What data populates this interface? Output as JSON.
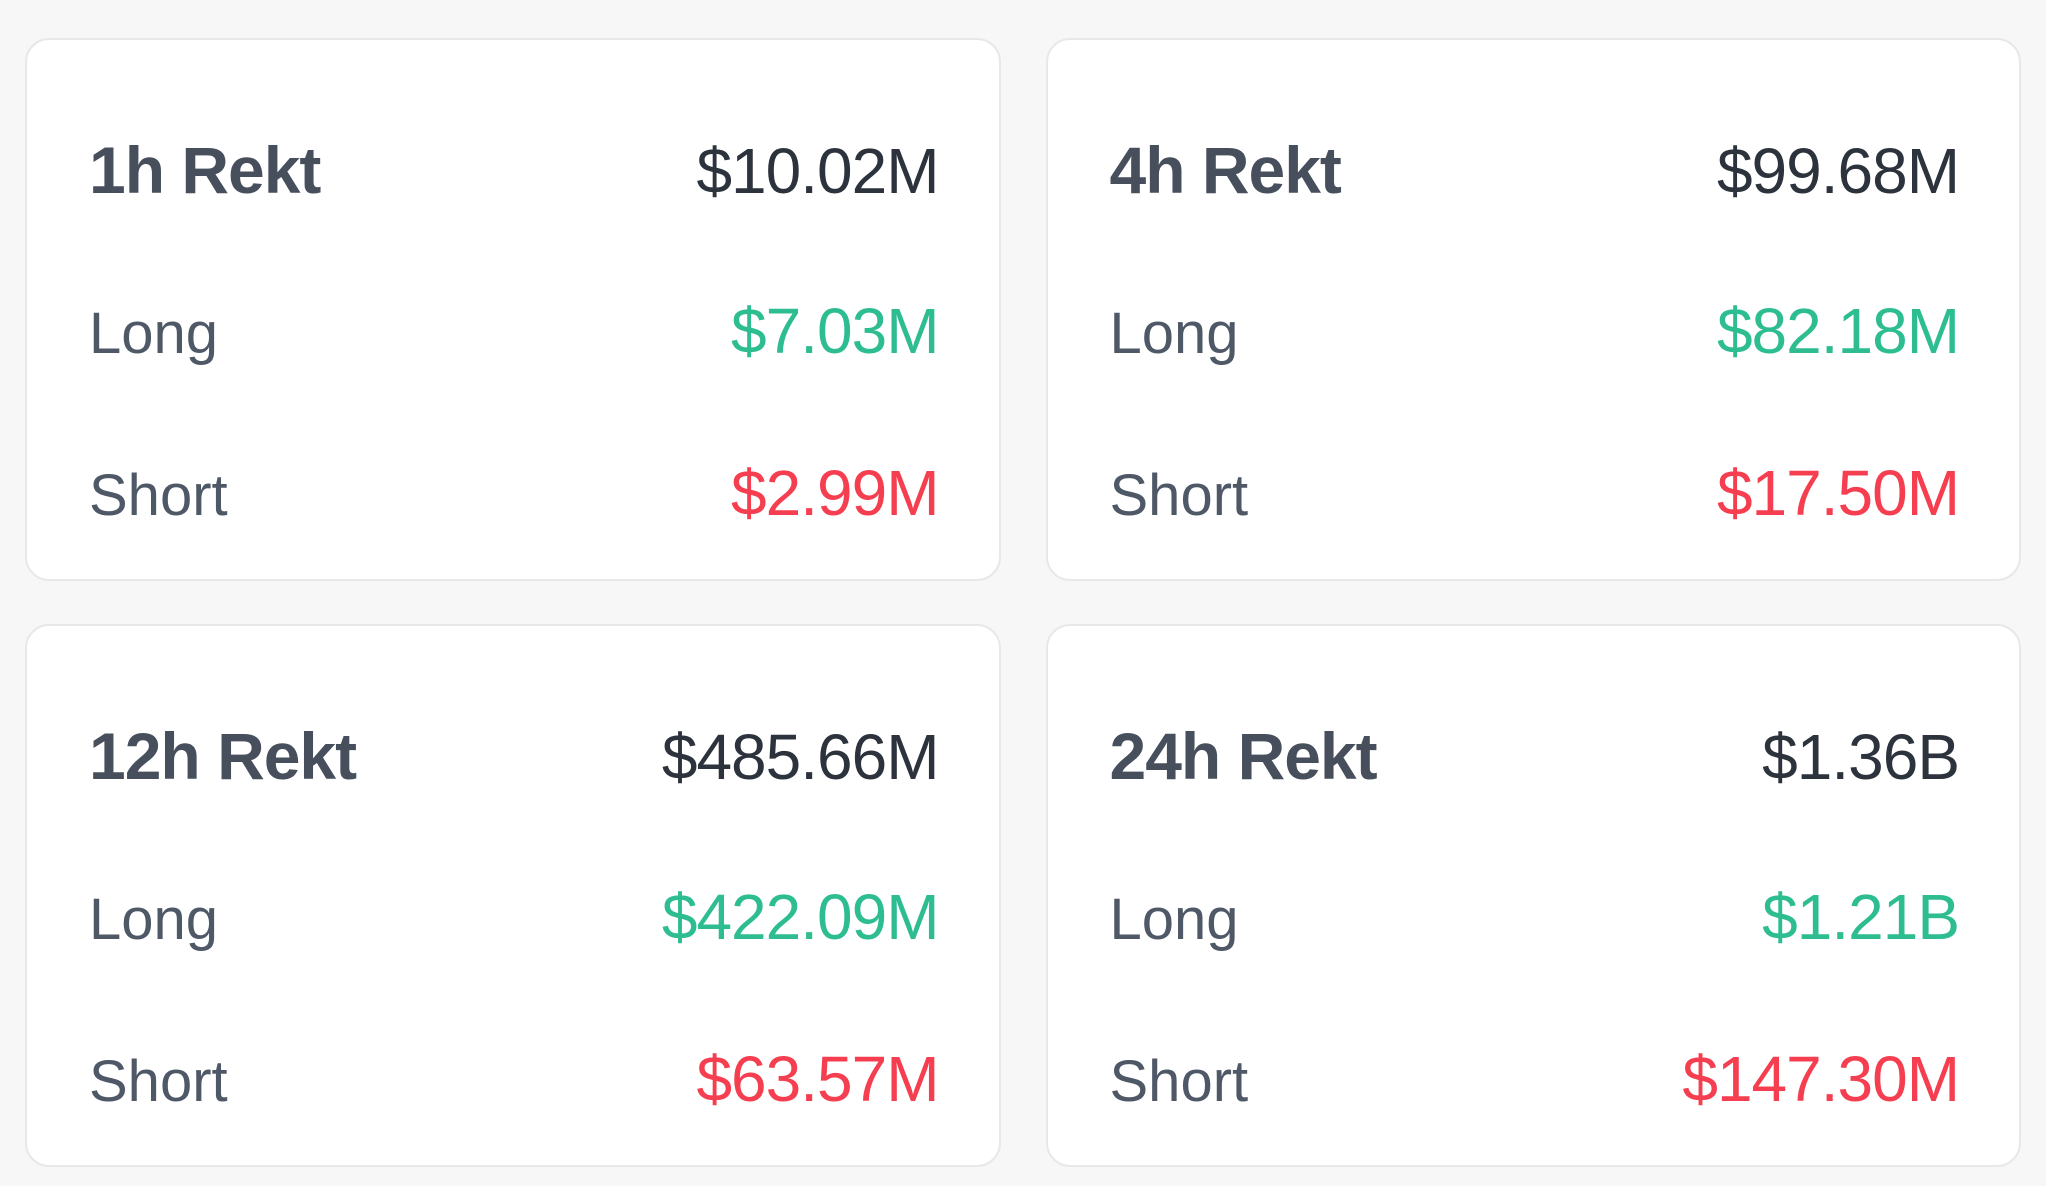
{
  "colors": {
    "page_bg": "#f7f7f8",
    "card_bg": "#ffffff",
    "card_border": "#e8e8ea",
    "title": "#474f5c",
    "label": "#4e5866",
    "total": "#2d333c",
    "long": "#2ebd91",
    "short": "#f53e4f"
  },
  "cards": [
    {
      "title": "1h Rekt",
      "total": "$10.02M",
      "long_label": "Long",
      "long_value": "$7.03M",
      "short_label": "Short",
      "short_value": "$2.99M"
    },
    {
      "title": "4h Rekt",
      "total": "$99.68M",
      "long_label": "Long",
      "long_value": "$82.18M",
      "short_label": "Short",
      "short_value": "$17.50M"
    },
    {
      "title": "12h Rekt",
      "total": "$485.66M",
      "long_label": "Long",
      "long_value": "$422.09M",
      "short_label": "Short",
      "short_value": "$63.57M"
    },
    {
      "title": "24h Rekt",
      "total": "$1.36B",
      "long_label": "Long",
      "long_value": "$1.21B",
      "short_label": "Short",
      "short_value": "$147.30M"
    }
  ]
}
